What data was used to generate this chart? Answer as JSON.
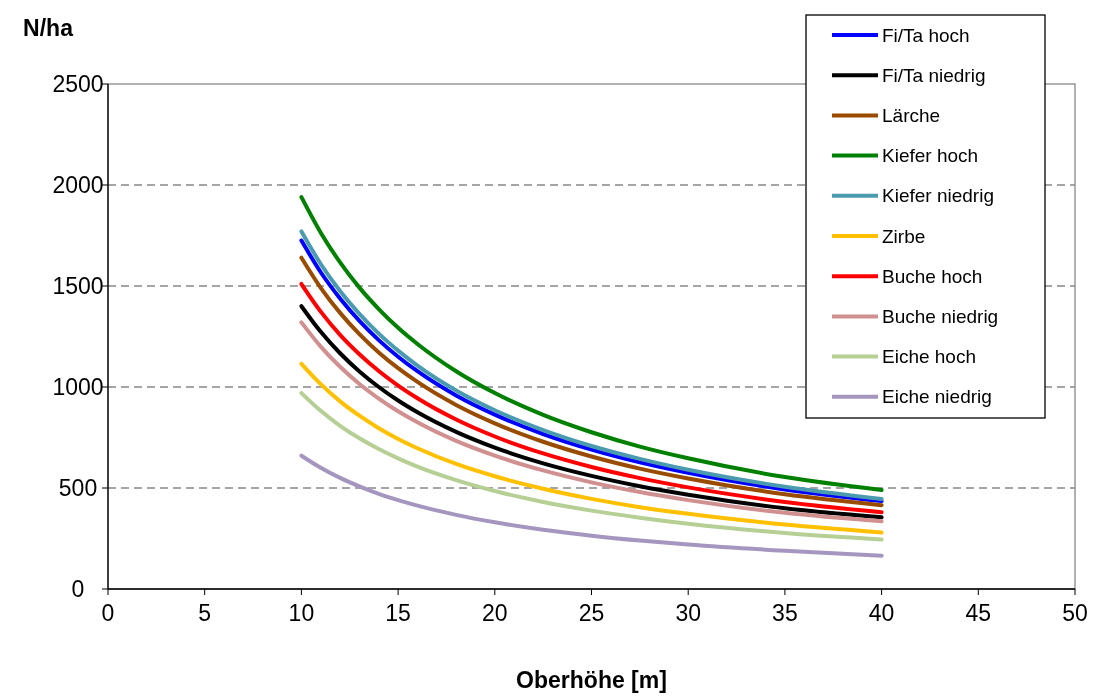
{
  "chart_data": {
    "type": "line",
    "xlabel": "Oberhöhe [m]",
    "ylabel": "N/ha",
    "x": [
      10,
      11,
      12,
      13,
      14,
      15,
      16,
      18,
      20,
      22.5,
      25,
      27.5,
      30,
      35,
      40
    ],
    "xlim": [
      0,
      50
    ],
    "xticks": [
      0,
      5,
      10,
      15,
      20,
      25,
      30,
      35,
      40,
      45,
      50
    ],
    "ylim": [
      0,
      2500
    ],
    "yticks": [
      0,
      500,
      1000,
      1500,
      2000,
      2500
    ],
    "grid": "y",
    "legend": "top right",
    "marker": "none",
    "line_style": "solid",
    "series": [
      {
        "name": "Fi/Ta hoch",
        "color": "#0000ff",
        "values": [
          1725,
          1568,
          1438,
          1327,
          1232,
          1150,
          1078,
          958,
          863,
          767,
          690,
          627,
          575,
          493,
          435
        ]
      },
      {
        "name": "Fi/Ta niedrig",
        "color": "#000000",
        "values": [
          1400,
          1273,
          1167,
          1077,
          1000,
          933,
          875,
          778,
          700,
          622,
          560,
          509,
          467,
          400,
          355
        ]
      },
      {
        "name": "Lärche",
        "color": "#994c00",
        "values": [
          1640,
          1491,
          1367,
          1262,
          1171,
          1093,
          1025,
          911,
          820,
          729,
          656,
          596,
          547,
          469,
          415
        ]
      },
      {
        "name": "Kiefer hoch",
        "color": "#008000",
        "values": [
          1940,
          1764,
          1617,
          1492,
          1386,
          1293,
          1213,
          1078,
          970,
          862,
          776,
          705,
          647,
          554,
          490
        ]
      },
      {
        "name": "Kiefer niedrig",
        "color": "#4a9bb0",
        "values": [
          1770,
          1609,
          1475,
          1362,
          1264,
          1180,
          1106,
          983,
          885,
          787,
          708,
          644,
          590,
          506,
          445
        ]
      },
      {
        "name": "Zirbe",
        "color": "#ffc000",
        "values": [
          1115,
          1014,
          929,
          858,
          796,
          743,
          697,
          619,
          558,
          496,
          446,
          405,
          372,
          319,
          280
        ]
      },
      {
        "name": "Buche hoch",
        "color": "#ff0000",
        "values": [
          1510,
          1373,
          1258,
          1162,
          1079,
          1007,
          944,
          839,
          755,
          671,
          604,
          549,
          503,
          431,
          380
        ]
      },
      {
        "name": "Buche niedrig",
        "color": "#d09090",
        "values": [
          1320,
          1200,
          1100,
          1015,
          943,
          880,
          825,
          733,
          660,
          587,
          528,
          480,
          440,
          377,
          335
        ]
      },
      {
        "name": "Eiche hoch",
        "color": "#b5cf94",
        "values": [
          970,
          882,
          808,
          746,
          693,
          647,
          606,
          539,
          485,
          431,
          388,
          353,
          323,
          277,
          245
        ]
      },
      {
        "name": "Eiche niedrig",
        "color": "#a596bf",
        "values": [
          660,
          600,
          550,
          508,
          471,
          440,
          413,
          367,
          330,
          293,
          264,
          240,
          220,
          189,
          165
        ]
      }
    ]
  }
}
